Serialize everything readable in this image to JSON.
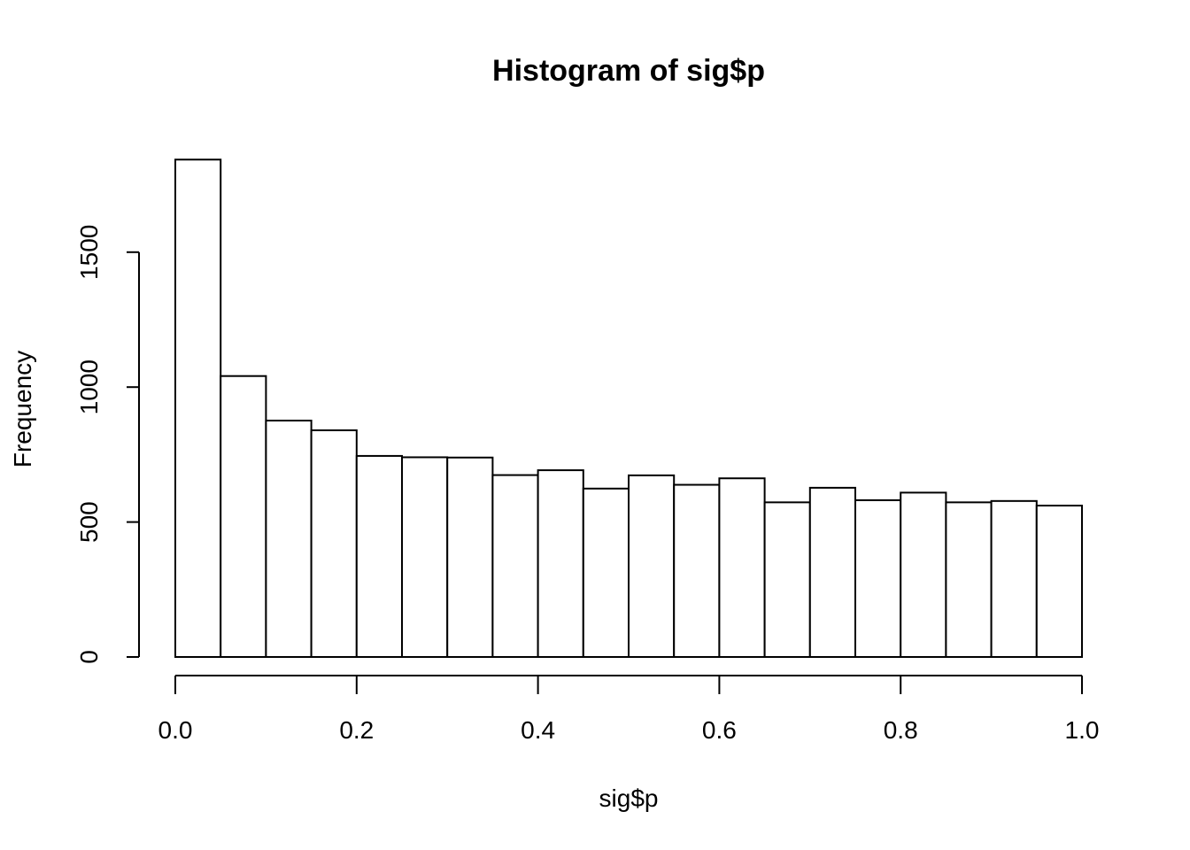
{
  "chart_data": {
    "type": "bar",
    "title": "Histogram of sig$p",
    "xlabel": "sig$p",
    "ylabel": "Frequency",
    "xlim": [
      0,
      1
    ],
    "ylim": [
      0,
      1840
    ],
    "bin_edges": [
      0.0,
      0.05,
      0.1,
      0.15,
      0.2,
      0.25,
      0.3,
      0.35,
      0.4,
      0.45,
      0.5,
      0.55,
      0.6,
      0.65,
      0.7,
      0.75,
      0.8,
      0.85,
      0.9,
      0.95,
      1.0
    ],
    "values": [
      1843,
      1041,
      876,
      840,
      745,
      740,
      739,
      674,
      692,
      624,
      673,
      638,
      662,
      573,
      627,
      581,
      609,
      573,
      578,
      561
    ],
    "x_ticks": [
      0.0,
      0.2,
      0.4,
      0.6,
      0.8,
      1.0
    ],
    "x_tick_labels": [
      "0.0",
      "0.2",
      "0.4",
      "0.6",
      "0.8",
      "1.0"
    ],
    "y_ticks": [
      0,
      500,
      1000,
      1500
    ],
    "y_tick_labels": [
      "0",
      "500",
      "1000",
      "1500"
    ],
    "grid": false,
    "legend": "none",
    "colors": {
      "bar_fill": "#ffffff",
      "bar_stroke": "#000000",
      "text": "#000000"
    }
  }
}
